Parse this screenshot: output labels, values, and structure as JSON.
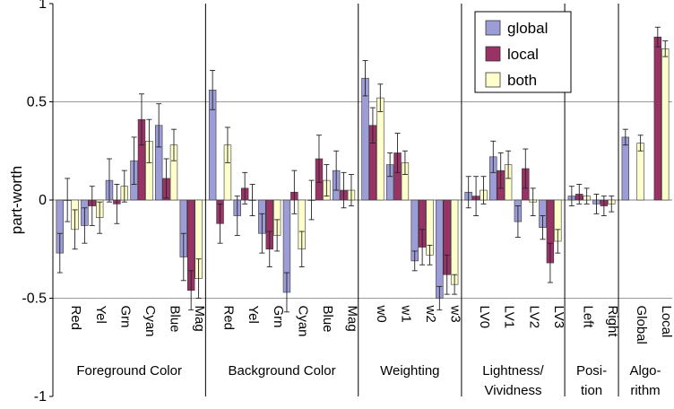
{
  "chart_data": {
    "type": "bar",
    "ylabel": "part-worth",
    "ylim": [
      -1,
      1
    ],
    "yticks": [
      -1,
      -0.5,
      0,
      0.5,
      1
    ],
    "ytick_labels": [
      "-1",
      "-0.5",
      "0",
      "0.5",
      "1"
    ],
    "gridlines": [
      -0.5,
      0.5
    ],
    "legend": {
      "position": "top-right"
    },
    "colors": {
      "global": "#9c9cd6",
      "local": "#993366",
      "both": "#ffffcc",
      "edge": "#333333"
    },
    "series": [
      {
        "name": "global",
        "key": "global"
      },
      {
        "name": "local",
        "key": "local"
      },
      {
        "name": "both",
        "key": "both"
      }
    ],
    "groups": [
      {
        "label_lines": [
          "Foreground Color"
        ],
        "categories": [
          {
            "label": "Red",
            "values": {
              "global": -0.27,
              "local": 0.0,
              "both": -0.15
            },
            "errors": {
              "global": 0.1,
              "local": 0.11,
              "both": 0.1
            }
          },
          {
            "label": "Yel",
            "values": {
              "global": -0.13,
              "local": -0.03,
              "both": -0.09
            },
            "errors": {
              "global": 0.09,
              "local": 0.1,
              "both": 0.08
            }
          },
          {
            "label": "Grn",
            "values": {
              "global": 0.1,
              "local": -0.02,
              "both": 0.07
            },
            "errors": {
              "global": 0.11,
              "local": 0.1,
              "both": 0.08
            }
          },
          {
            "label": "Cyan",
            "values": {
              "global": 0.2,
              "local": 0.41,
              "both": 0.3
            },
            "errors": {
              "global": 0.12,
              "local": 0.13,
              "both": 0.11
            }
          },
          {
            "label": "Blue",
            "values": {
              "global": 0.38,
              "local": 0.11,
              "both": 0.28
            },
            "errors": {
              "global": 0.11,
              "local": 0.1,
              "both": 0.08
            }
          },
          {
            "label": "Mag",
            "values": {
              "global": -0.29,
              "local": -0.46,
              "both": -0.4
            },
            "errors": {
              "global": 0.12,
              "local": 0.1,
              "both": 0.1
            }
          }
        ]
      },
      {
        "label_lines": [
          "Background Color"
        ],
        "categories": [
          {
            "label": "Red",
            "values": {
              "global": 0.56,
              "local": -0.12,
              "both": 0.28
            },
            "errors": {
              "global": 0.1,
              "local": 0.1,
              "both": 0.09
            }
          },
          {
            "label": "Yel",
            "values": {
              "global": -0.08,
              "local": 0.06,
              "both": 0.0
            },
            "errors": {
              "global": 0.1,
              "local": 0.08,
              "both": 0.08
            }
          },
          {
            "label": "Grn",
            "values": {
              "global": -0.17,
              "local": -0.25,
              "both": -0.18
            },
            "errors": {
              "global": 0.1,
              "local": 0.09,
              "both": 0.08
            }
          },
          {
            "label": "Cyan",
            "values": {
              "global": -0.47,
              "local": 0.04,
              "both": -0.25
            },
            "errors": {
              "global": 0.1,
              "local": 0.11,
              "both": 0.09
            }
          },
          {
            "label": "Blue",
            "values": {
              "global": 0.0,
              "local": 0.21,
              "both": 0.1
            },
            "errors": {
              "global": 0.1,
              "local": 0.12,
              "both": 0.08
            }
          },
          {
            "label": "Mag",
            "values": {
              "global": 0.15,
              "local": 0.05,
              "both": 0.05
            },
            "errors": {
              "global": 0.1,
              "local": 0.09,
              "both": 0.08
            }
          }
        ]
      },
      {
        "label_lines": [
          "Weighting"
        ],
        "categories": [
          {
            "label": "w0",
            "values": {
              "global": 0.62,
              "local": 0.38,
              "both": 0.52
            },
            "errors": {
              "global": 0.09,
              "local": 0.09,
              "both": 0.07
            }
          },
          {
            "label": "w1",
            "values": {
              "global": 0.18,
              "local": 0.24,
              "both": 0.19
            },
            "errors": {
              "global": 0.06,
              "local": 0.1,
              "both": 0.06
            }
          },
          {
            "label": "w2",
            "values": {
              "global": -0.31,
              "local": -0.24,
              "both": -0.28
            },
            "errors": {
              "global": 0.05,
              "local": 0.09,
              "both": 0.05
            }
          },
          {
            "label": "w3",
            "values": {
              "global": -0.5,
              "local": -0.38,
              "both": -0.43
            },
            "errors": {
              "global": 0.06,
              "local": 0.1,
              "both": 0.05
            }
          }
        ]
      },
      {
        "label_lines": [
          "Lightness/",
          "Vividness"
        ],
        "categories": [
          {
            "label": "LV0",
            "values": {
              "global": 0.04,
              "local": 0.02,
              "both": 0.05
            },
            "errors": {
              "global": 0.08,
              "local": 0.1,
              "both": 0.07
            }
          },
          {
            "label": "LV1",
            "values": {
              "global": 0.22,
              "local": 0.15,
              "both": 0.18
            },
            "errors": {
              "global": 0.08,
              "local": 0.09,
              "both": 0.07
            }
          },
          {
            "label": "LV2",
            "values": {
              "global": -0.11,
              "local": 0.16,
              "both": -0.01
            },
            "errors": {
              "global": 0.08,
              "local": 0.1,
              "both": 0.07
            }
          },
          {
            "label": "LV3",
            "values": {
              "global": -0.14,
              "local": -0.32,
              "both": -0.21
            },
            "errors": {
              "global": 0.06,
              "local": 0.1,
              "both": 0.06
            }
          }
        ]
      },
      {
        "label_lines": [
          "Posi-",
          "tion"
        ],
        "categories": [
          {
            "label": "Left",
            "values": {
              "global": 0.02,
              "local": 0.03,
              "both": 0.02
            },
            "errors": {
              "global": 0.05,
              "local": 0.05,
              "both": 0.04
            }
          },
          {
            "label": "Right",
            "values": {
              "global": -0.02,
              "local": -0.03,
              "both": -0.02
            },
            "errors": {
              "global": 0.05,
              "local": 0.05,
              "both": 0.04
            }
          }
        ]
      },
      {
        "label_lines": [
          "Algo-",
          "rithm"
        ],
        "categories": [
          {
            "label": "Global",
            "values": {
              "global": 0.32,
              "local": null,
              "both": 0.29
            },
            "errors": {
              "global": 0.04,
              "local": 0,
              "both": 0.04
            }
          },
          {
            "label": "Local",
            "values": {
              "global": null,
              "local": 0.83,
              "both": 0.77
            },
            "errors": {
              "global": 0,
              "local": 0.05,
              "both": 0.04
            }
          }
        ]
      }
    ]
  }
}
